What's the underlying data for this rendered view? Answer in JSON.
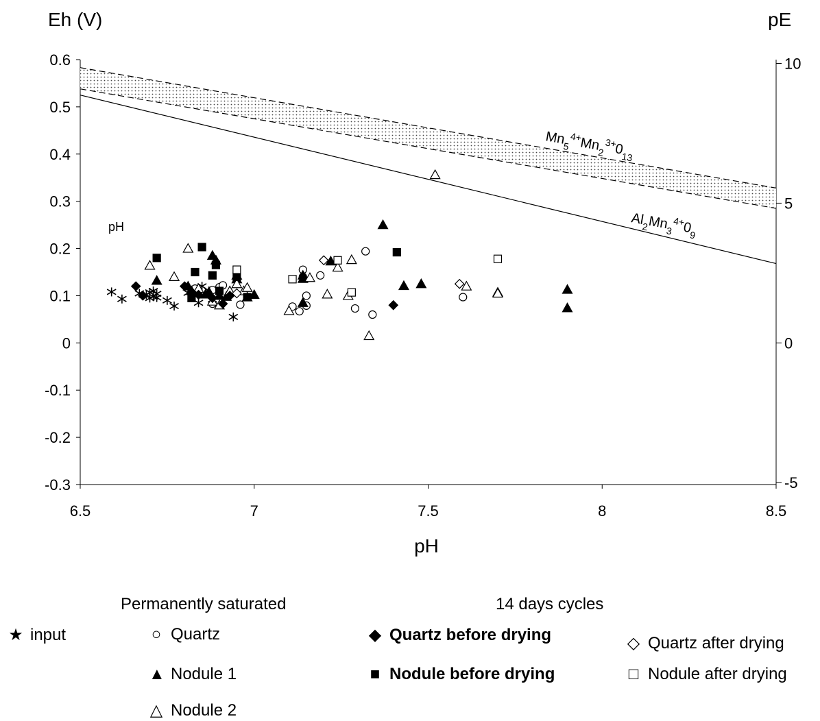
{
  "chart_data": {
    "type": "scatter",
    "title": "",
    "xlabel": "pH",
    "ylabel_left": "Eh (V)",
    "ylabel_right": "pE",
    "xlim": [
      6.5,
      8.5
    ],
    "ylim": [
      -0.3,
      0.6
    ],
    "x_ticks": [
      "6.5",
      "7",
      "7.5",
      "8",
      "8.5"
    ],
    "y_ticks": [
      "-0.3",
      "-0.2",
      "-0.1",
      "0",
      "0.1",
      "0.2",
      "0.3",
      "0.4",
      "0.5",
      "0.6"
    ],
    "y2_ticks": [
      {
        "label": "-5",
        "eh": -0.296
      },
      {
        "label": "0",
        "eh": 0
      },
      {
        "label": "5",
        "eh": 0.296
      },
      {
        "label": "10",
        "eh": 0.592
      }
    ],
    "annotations": {
      "ph_text": "pH",
      "line1_label": {
        "base": "Mn",
        "parts": [
          [
            "5",
            "sub"
          ],
          [
            "4+",
            "sup"
          ],
          [
            "Mn",
            "n"
          ],
          [
            "2",
            "sub"
          ],
          [
            "3+",
            "sup"
          ],
          [
            "0",
            "n"
          ],
          [
            "13",
            "sub"
          ]
        ]
      },
      "line2_label": {
        "base": "Al",
        "parts": [
          [
            "2",
            "sub"
          ],
          [
            "Mn",
            "n"
          ],
          [
            "3",
            "sub"
          ],
          [
            "4+",
            "sup"
          ],
          [
            "0",
            "n"
          ],
          [
            "9",
            "sub"
          ]
        ]
      }
    },
    "lines": {
      "al2mn3o9": {
        "x": [
          6.5,
          8.5
        ],
        "y": [
          0.525,
          0.168
        ]
      },
      "mn5mn2o13_band": {
        "upper": {
          "x": [
            6.5,
            8.5
          ],
          "y": [
            0.583,
            0.328
          ]
        },
        "lower": {
          "x": [
            6.5,
            8.5
          ],
          "y": [
            0.538,
            0.285
          ]
        }
      }
    },
    "series": [
      {
        "name": "input",
        "marker": "asterisk",
        "points": [
          [
            6.59,
            0.108
          ],
          [
            6.62,
            0.093
          ],
          [
            6.67,
            0.105
          ],
          [
            6.69,
            0.102
          ],
          [
            6.7,
            0.107
          ],
          [
            6.7,
            0.095
          ],
          [
            6.71,
            0.11
          ],
          [
            6.71,
            0.098
          ],
          [
            6.72,
            0.104
          ],
          [
            6.72,
            0.096
          ],
          [
            6.75,
            0.09
          ],
          [
            6.77,
            0.078
          ],
          [
            6.81,
            0.106
          ],
          [
            6.84,
            0.085
          ],
          [
            6.85,
            0.12
          ],
          [
            6.87,
            0.11
          ],
          [
            6.88,
            0.092
          ],
          [
            6.94,
            0.055
          ]
        ]
      },
      {
        "name": "Quartz",
        "marker": "circle-open",
        "points": [
          [
            6.82,
            0.105
          ],
          [
            6.83,
            0.115
          ],
          [
            6.88,
            0.083
          ],
          [
            6.88,
            0.112
          ],
          [
            6.9,
            0.118
          ],
          [
            6.91,
            0.122
          ],
          [
            6.96,
            0.081
          ],
          [
            7.11,
            0.077
          ],
          [
            7.13,
            0.067
          ],
          [
            7.14,
            0.155
          ],
          [
            7.14,
            0.14
          ],
          [
            7.15,
            0.1
          ],
          [
            7.15,
            0.079
          ],
          [
            7.19,
            0.143
          ],
          [
            7.29,
            0.073
          ],
          [
            7.32,
            0.194
          ],
          [
            7.34,
            0.06
          ],
          [
            7.6,
            0.097
          ]
        ]
      },
      {
        "name": "Nodule 1",
        "marker": "triangle-filled",
        "points": [
          [
            6.72,
            0.132
          ],
          [
            6.81,
            0.12
          ],
          [
            6.82,
            0.11
          ],
          [
            6.86,
            0.103
          ],
          [
            6.87,
            0.108
          ],
          [
            6.88,
            0.185
          ],
          [
            6.89,
            0.175
          ],
          [
            6.9,
            0.1
          ],
          [
            6.92,
            0.098
          ],
          [
            6.95,
            0.143
          ],
          [
            6.95,
            0.135
          ],
          [
            6.98,
            0.097
          ],
          [
            7.0,
            0.102
          ],
          [
            7.14,
            0.085
          ],
          [
            7.14,
            0.136
          ],
          [
            7.14,
            0.143
          ],
          [
            7.22,
            0.173
          ],
          [
            7.37,
            0.25
          ],
          [
            7.43,
            0.121
          ],
          [
            7.48,
            0.125
          ],
          [
            7.7,
            0.107
          ],
          [
            7.9,
            0.113
          ],
          [
            7.9,
            0.074
          ]
        ]
      },
      {
        "name": "Nodule 2",
        "marker": "triangle-open",
        "points": [
          [
            6.7,
            0.164
          ],
          [
            6.77,
            0.14
          ],
          [
            6.81,
            0.2
          ],
          [
            6.84,
            0.115
          ],
          [
            6.88,
            0.088
          ],
          [
            6.9,
            0.08
          ],
          [
            6.93,
            0.11
          ],
          [
            6.95,
            0.125
          ],
          [
            6.97,
            0.11
          ],
          [
            6.98,
            0.117
          ],
          [
            7.1,
            0.068
          ],
          [
            7.16,
            0.138
          ],
          [
            7.21,
            0.103
          ],
          [
            7.24,
            0.16
          ],
          [
            7.27,
            0.1
          ],
          [
            7.28,
            0.176
          ],
          [
            7.33,
            0.015
          ],
          [
            7.52,
            0.356
          ],
          [
            7.61,
            0.12
          ],
          [
            7.7,
            0.105
          ]
        ]
      },
      {
        "name": "Quartz before drying",
        "marker": "diamond-filled",
        "points": [
          [
            6.66,
            0.12
          ],
          [
            6.68,
            0.1
          ],
          [
            6.8,
            0.12
          ],
          [
            6.82,
            0.108
          ],
          [
            6.84,
            0.102
          ],
          [
            6.88,
            0.095
          ],
          [
            6.91,
            0.083
          ],
          [
            6.93,
            0.1
          ],
          [
            7.4,
            0.08
          ]
        ]
      },
      {
        "name": "Nodule before drying",
        "marker": "square-filled",
        "points": [
          [
            6.72,
            0.18
          ],
          [
            6.82,
            0.095
          ],
          [
            6.83,
            0.15
          ],
          [
            6.85,
            0.203
          ],
          [
            6.88,
            0.143
          ],
          [
            6.89,
            0.165
          ],
          [
            6.9,
            0.11
          ],
          [
            6.95,
            0.14
          ],
          [
            6.98,
            0.097
          ],
          [
            7.41,
            0.192
          ]
        ]
      },
      {
        "name": "Quartz after drying",
        "marker": "diamond-open",
        "points": [
          [
            6.95,
            0.105
          ],
          [
            7.2,
            0.175
          ],
          [
            7.59,
            0.125
          ]
        ]
      },
      {
        "name": "Nodule after drying",
        "marker": "square-open",
        "points": [
          [
            6.95,
            0.155
          ],
          [
            7.11,
            0.135
          ],
          [
            7.24,
            0.175
          ],
          [
            7.28,
            0.107
          ],
          [
            7.7,
            0.178
          ]
        ]
      }
    ],
    "legend": {
      "placement": "bottom",
      "group1": "Permanently saturated",
      "group2": "14 days cycles",
      "input_label": "input",
      "quartz_label": "Quartz",
      "nodule1_label": "Nodule 1",
      "nodule2_label": "Nodule 2",
      "qbd_label": "Quartz before drying",
      "nbd_label": "Nodule before drying",
      "qad_label": "Quartz after drying",
      "nad_label": "Nodule after drying"
    }
  }
}
